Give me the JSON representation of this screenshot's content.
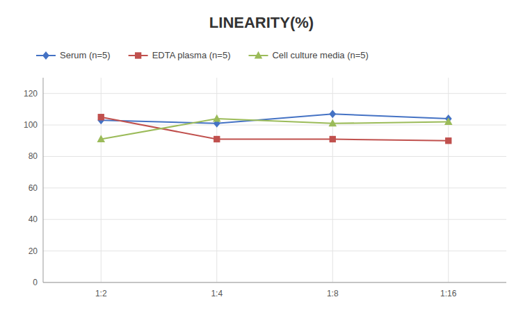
{
  "chart_data": {
    "type": "line",
    "title": "LINEARITY(%)",
    "categories": [
      "1:2",
      "1:4",
      "1:8",
      "1:16"
    ],
    "series": [
      {
        "name": "Serum (n=5)",
        "color": "#4472C4",
        "marker": "diamond",
        "values": [
          103,
          101,
          107,
          104
        ]
      },
      {
        "name": "EDTA plasma (n=5)",
        "color": "#C0504D",
        "marker": "square",
        "values": [
          105,
          91,
          91,
          90
        ]
      },
      {
        "name": "Cell culture media (n=5)",
        "color": "#9BBB59",
        "marker": "triangle",
        "values": [
          91,
          104,
          101,
          102
        ]
      }
    ],
    "ylim": [
      0,
      130
    ],
    "yticks": [
      0,
      20,
      40,
      60,
      80,
      100,
      120
    ],
    "grid": true,
    "legend": "top"
  }
}
